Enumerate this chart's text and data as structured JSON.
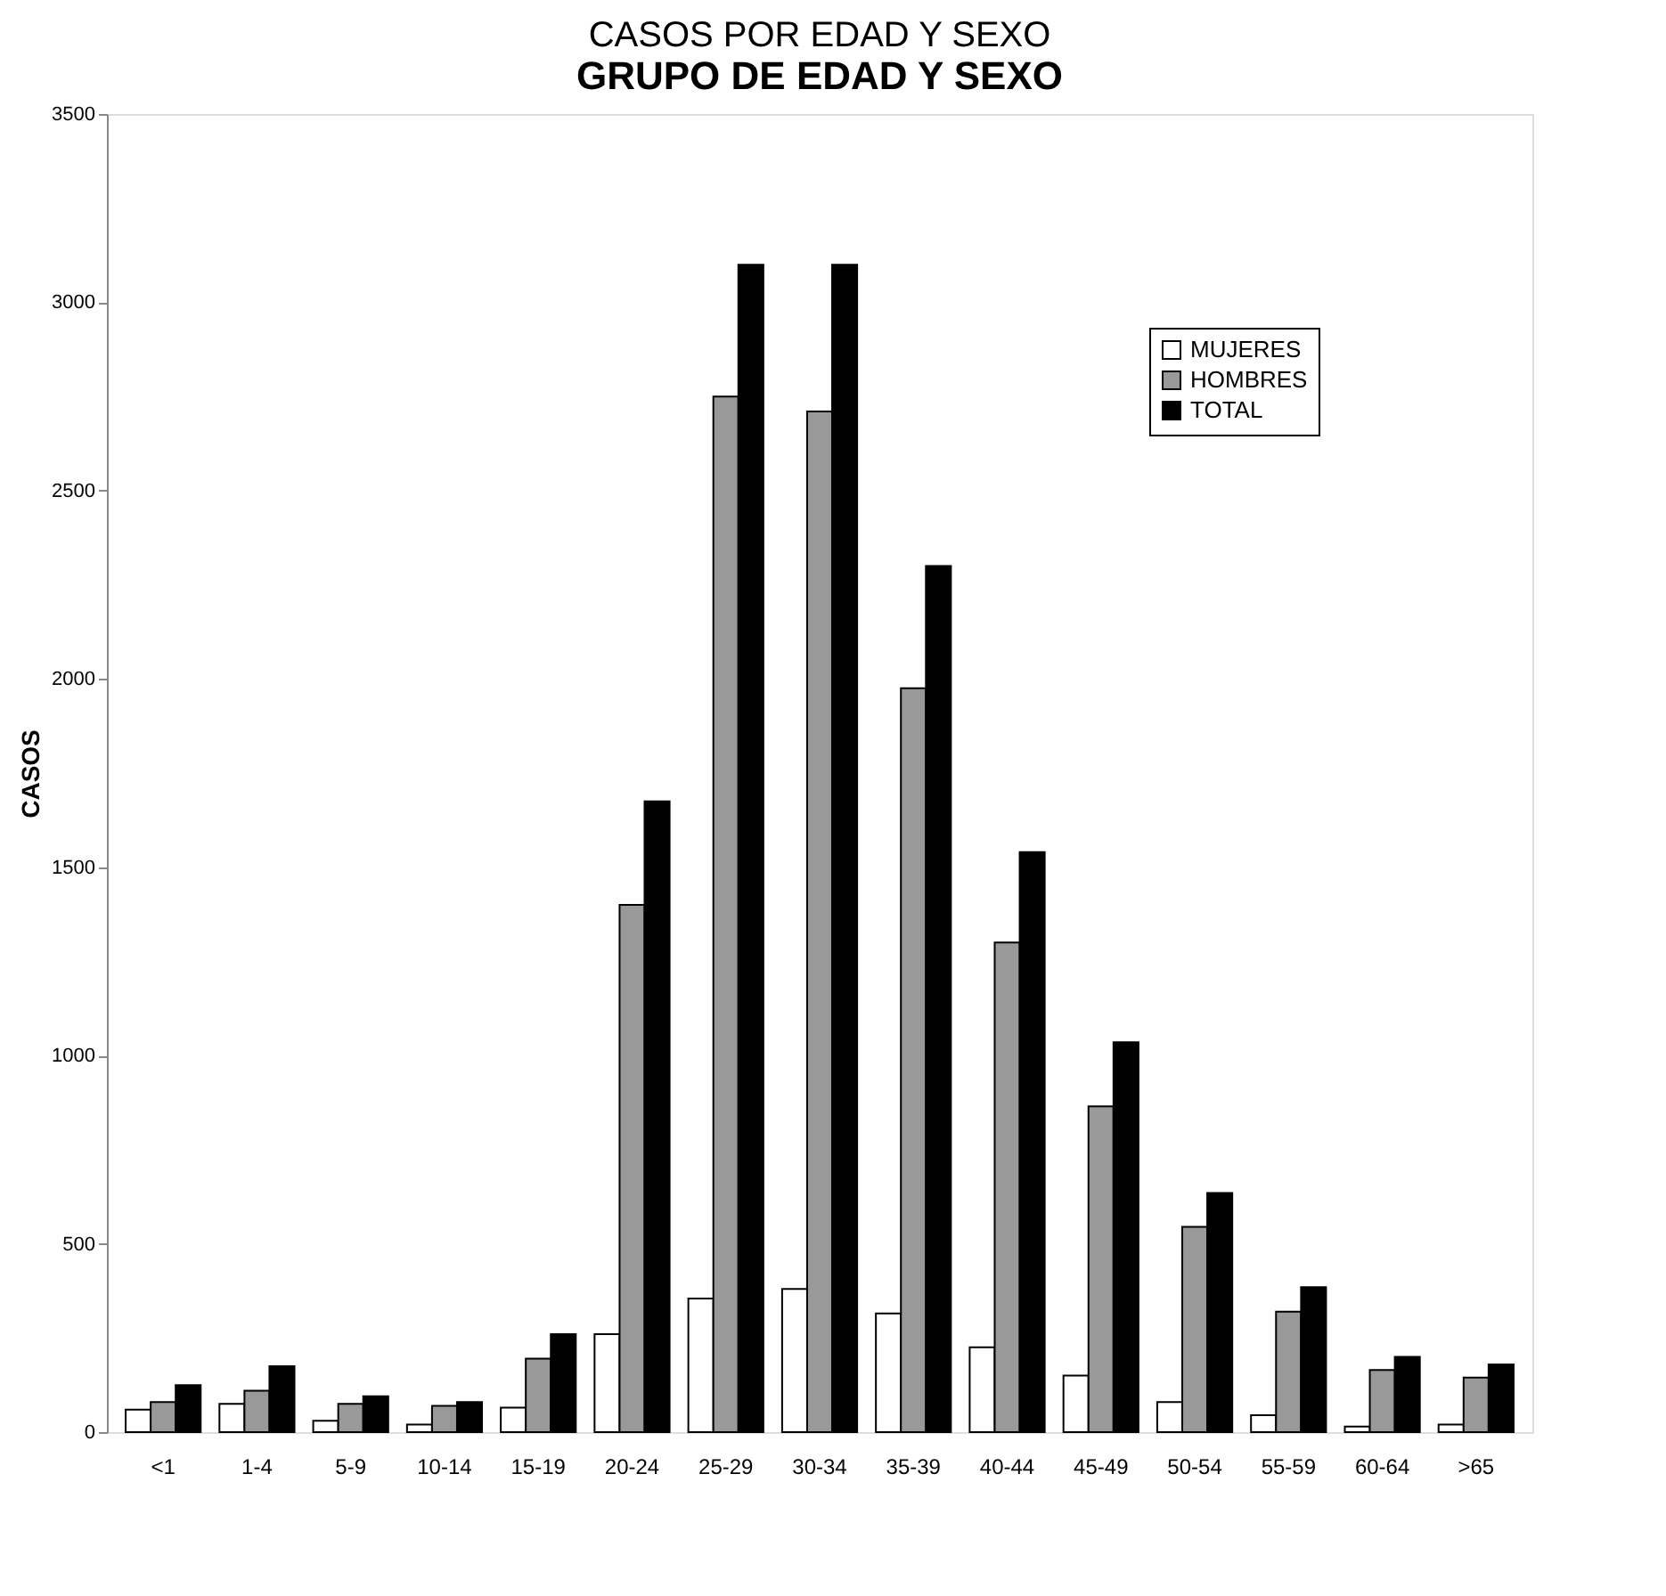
{
  "chart_data": {
    "type": "bar",
    "title": "CASOS POR EDAD Y SEXO",
    "subtitle": "GRUPO DE EDAD Y SEXO",
    "ylabel": "CASOS",
    "categories": [
      "<1",
      "1-4",
      "5-9",
      "10-14",
      "15-19",
      "20-24",
      "25-29",
      "30-34",
      "35-39",
      "40-44",
      "45-49",
      "50-54",
      "55-59",
      "60-64",
      ">65"
    ],
    "series": [
      {
        "name": "MUJERES",
        "color": "#ffffff",
        "values": [
          60,
          75,
          30,
          20,
          65,
          260,
          355,
          380,
          315,
          225,
          150,
          80,
          45,
          15,
          20
        ]
      },
      {
        "name": "HOMBRES",
        "color": "#999999",
        "values": [
          80,
          110,
          75,
          70,
          195,
          1400,
          2750,
          2710,
          1975,
          1300,
          865,
          545,
          320,
          165,
          145
        ]
      },
      {
        "name": "TOTAL",
        "color": "#000000",
        "values": [
          125,
          175,
          95,
          80,
          260,
          1675,
          3100,
          3100,
          2300,
          1540,
          1035,
          635,
          385,
          200,
          180
        ]
      }
    ],
    "ylim": [
      0,
      3500
    ],
    "yticks": [
      0,
      500,
      1000,
      1500,
      2000,
      2500,
      3000,
      3500
    ],
    "grid": false,
    "legend": "top right"
  }
}
